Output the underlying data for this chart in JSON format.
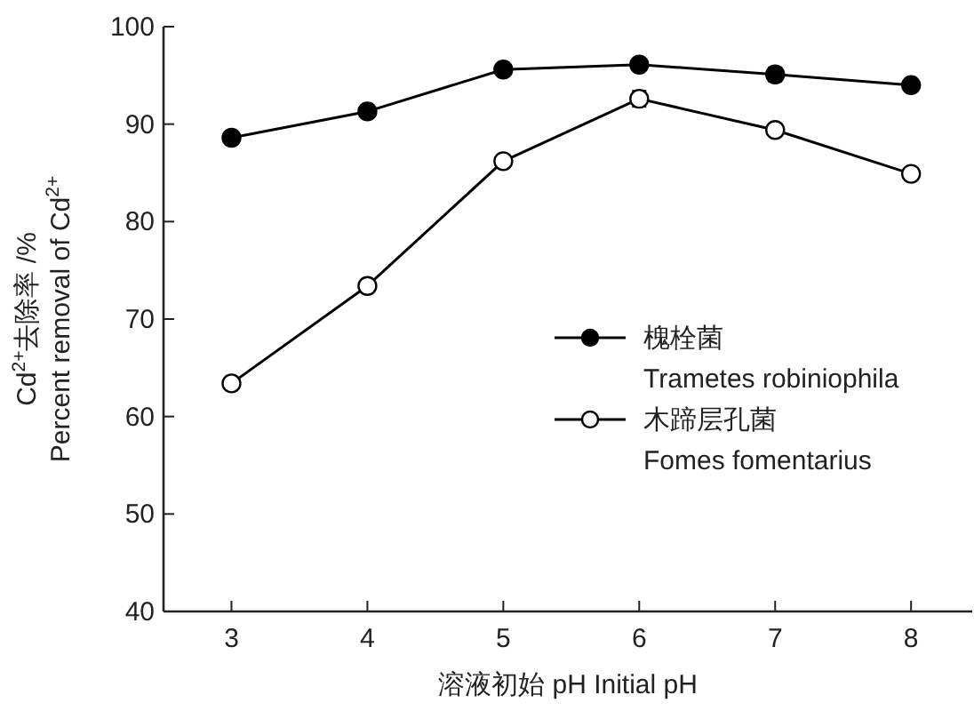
{
  "chart_data": {
    "type": "line",
    "xlabel": "溶液初始 pH Initial pH",
    "ylabel": "Cd$^{2+}$去除率 /%\nPercent removal of Cd$^{2+}$",
    "x": [
      3,
      4,
      5,
      6,
      7,
      8
    ],
    "xlim": [
      2.5,
      8.45
    ],
    "xticks": [
      3,
      4,
      5,
      6,
      7,
      8
    ],
    "ylim": [
      40,
      100
    ],
    "yticks": [
      40,
      50,
      60,
      70,
      80,
      90,
      100
    ],
    "marker": "circle",
    "line_style": "solid",
    "legend": "bottom right",
    "grid": false,
    "series": [
      {
        "name": "槐栓菌\nTrametes robiniophila",
        "color": "#000000",
        "values": [
          88.6,
          91.3,
          95.6,
          96.1,
          95.1,
          94.0
        ],
        "errors": [
          null,
          0.6,
          null,
          null,
          0.7,
          0.4
        ]
      },
      {
        "name": "木蹄层孔菌\nFomes fomentarius",
        "color": "#000000",
        "values": [
          63.4,
          73.4,
          86.2,
          92.6,
          89.4,
          84.9
        ],
        "errors": [
          null,
          null,
          null,
          0.8,
          null,
          0.6
        ]
      }
    ]
  }
}
